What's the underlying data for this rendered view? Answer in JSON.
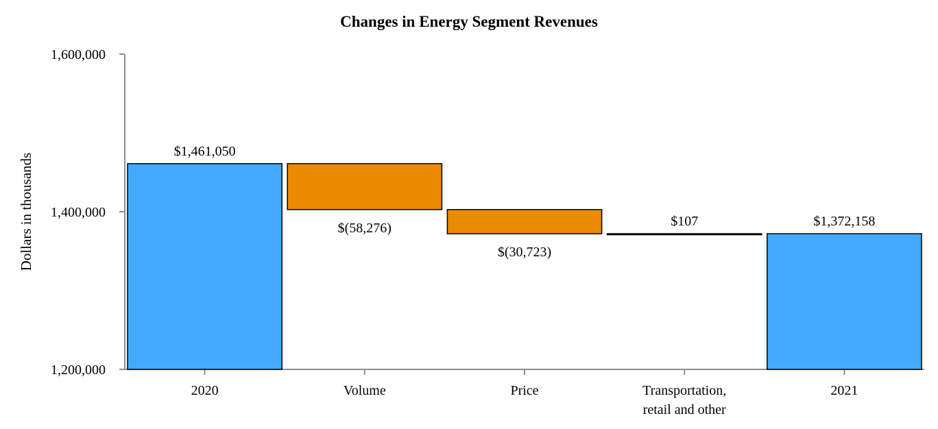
{
  "chart_data": {
    "type": "waterfall",
    "title": "Changes in Energy Segment Revenues",
    "xlabel": "",
    "ylabel": "Dollars in thousands",
    "ylim": [
      1200000,
      1600000
    ],
    "yticks": [
      1200000,
      1400000,
      1600000
    ],
    "ytick_labels": [
      "1,200,000",
      "1,400,000",
      "1,600,000"
    ],
    "categories": [
      [
        "2020"
      ],
      [
        "Volume"
      ],
      [
        "Price"
      ],
      [
        "Transportation,",
        "retail and other"
      ],
      [
        "2021"
      ]
    ],
    "bars": [
      {
        "kind": "total",
        "start": 1200000,
        "end": 1461050,
        "value": 1461050,
        "label": "$1,461,050",
        "label_position": "above",
        "color": "#42aaff"
      },
      {
        "kind": "decrease",
        "start": 1461050,
        "end": 1402774,
        "value": -58276,
        "label": "$(58,276)",
        "label_position": "below",
        "color": "#ea8c00"
      },
      {
        "kind": "decrease",
        "start": 1402774,
        "end": 1372051,
        "value": -30723,
        "label": "$(30,723)",
        "label_position": "below",
        "color": "#ea8c00"
      },
      {
        "kind": "increase",
        "start": 1372051,
        "end": 1372158,
        "value": 107,
        "label": "$107",
        "label_position": "above",
        "color": "#42aaff"
      },
      {
        "kind": "total",
        "start": 1200000,
        "end": 1372158,
        "value": 1372158,
        "label": "$1,372,158",
        "label_position": "above",
        "color": "#42aaff"
      }
    ]
  }
}
